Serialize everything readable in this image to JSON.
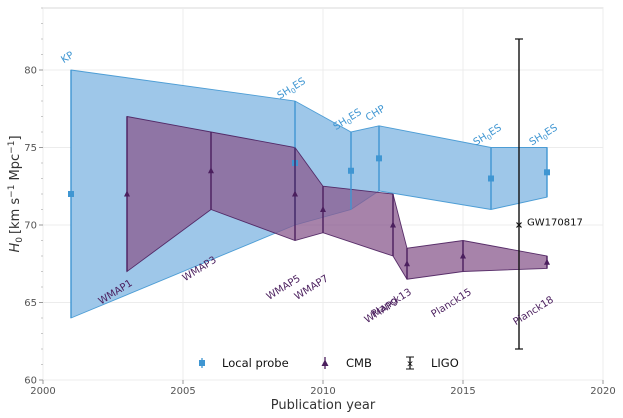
{
  "chart_data": {
    "type": "errorbar-band",
    "xlabel": "Publication year",
    "ylabel_main": "H",
    "ylabel_sub": "0",
    "ylabel_units": "[km s",
    "ylabel_exp1": "−1",
    "ylabel_mid": " Mpc",
    "ylabel_exp2": "−1",
    "ylabel_end": "]",
    "xlim": [
      2000,
      2020
    ],
    "ylim": [
      60,
      84
    ],
    "xticks": [
      2000,
      2005,
      2010,
      2015,
      2020
    ],
    "yticks": [
      60,
      65,
      70,
      75,
      80
    ],
    "colors": {
      "local": "#3f96d2",
      "local_fill": "#9ec7e9",
      "cmb": "#4b1f5e",
      "cmb_fill": "#8a5a8e",
      "ligo": "#111111"
    },
    "series": [
      {
        "name": "Local probe",
        "points": [
          {
            "x": 2001,
            "y": 72.0,
            "lo": 64.0,
            "hi": 80.0,
            "label": "KP"
          },
          {
            "x": 2009,
            "y": 74.0,
            "lo": 70.0,
            "hi": 78.0,
            "label": "SH0ES"
          },
          {
            "x": 2011,
            "y": 73.5,
            "lo": 71.0,
            "hi": 76.0,
            "label": "SH0ES"
          },
          {
            "x": 2012,
            "y": 74.3,
            "lo": 72.2,
            "hi": 76.4,
            "label": "CHP"
          },
          {
            "x": 2016,
            "y": 73.0,
            "lo": 71.0,
            "hi": 75.0,
            "label": "SH0ES"
          },
          {
            "x": 2018,
            "y": 73.4,
            "lo": 71.8,
            "hi": 75.0,
            "label": "SH0ES"
          }
        ]
      },
      {
        "name": "CMB",
        "points": [
          {
            "x": 2003,
            "y": 72.0,
            "lo": 67.0,
            "hi": 77.0,
            "label": "WMAP1"
          },
          {
            "x": 2006,
            "y": 73.5,
            "lo": 71.0,
            "hi": 76.0,
            "label": "WMAP3"
          },
          {
            "x": 2009,
            "y": 72.0,
            "lo": 69.0,
            "hi": 75.0,
            "label": "WMAP5"
          },
          {
            "x": 2010,
            "y": 71.0,
            "lo": 69.5,
            "hi": 72.5,
            "label": "WMAP7"
          },
          {
            "x": 2012.5,
            "y": 70.0,
            "lo": 68.0,
            "hi": 72.0,
            "label": "WMAP9"
          },
          {
            "x": 2013,
            "y": 67.5,
            "lo": 66.5,
            "hi": 68.5,
            "label": "Planck13"
          },
          {
            "x": 2015,
            "y": 68.0,
            "lo": 67.0,
            "hi": 69.0,
            "label": "Planck15"
          },
          {
            "x": 2018,
            "y": 67.6,
            "lo": 67.2,
            "hi": 68.0,
            "label": "Planck18"
          }
        ]
      },
      {
        "name": "LIGO",
        "points": [
          {
            "x": 2017,
            "y": 70.0,
            "lo": 62.0,
            "hi": 82.0,
            "label": "GW170817"
          }
        ]
      }
    ],
    "legend": [
      "Local probe",
      "CMB",
      "LIGO"
    ],
    "legend_placement": "bottom-center",
    "grid": true
  }
}
